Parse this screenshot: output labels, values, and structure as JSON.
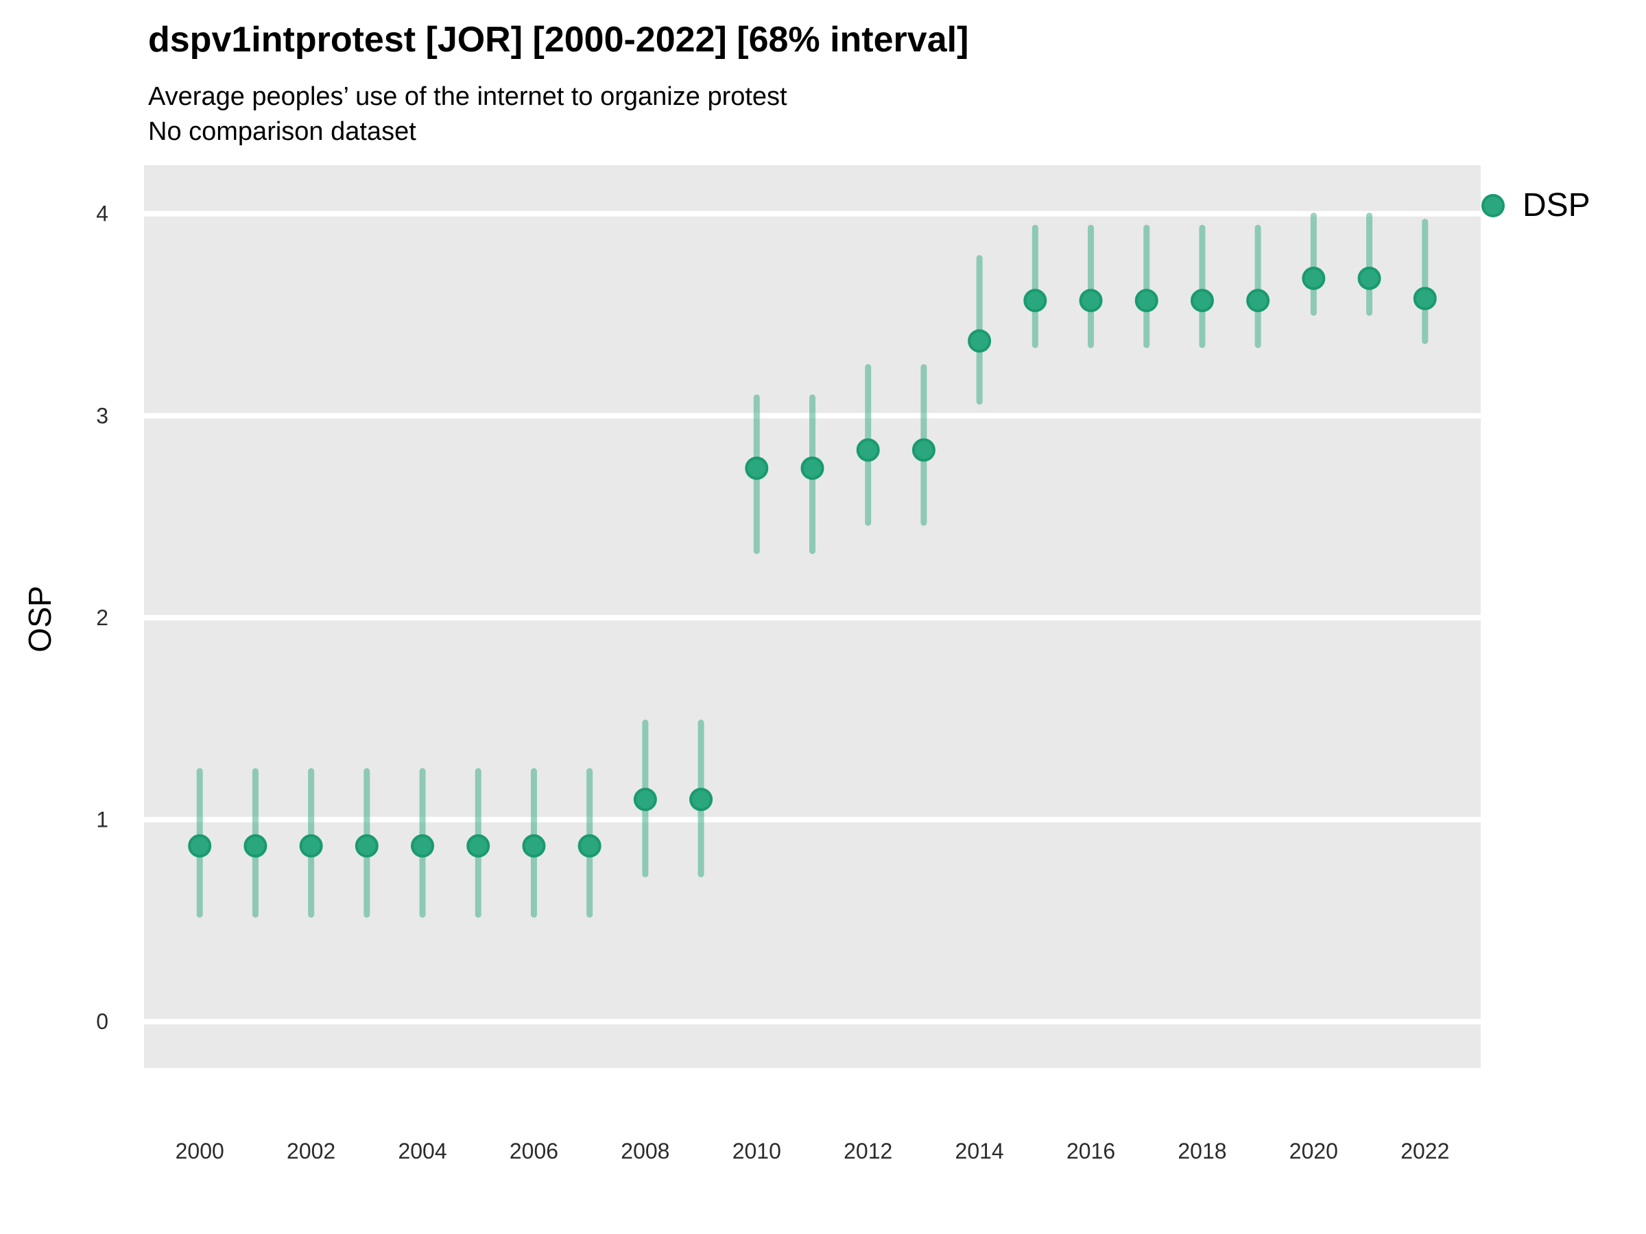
{
  "header": {
    "title": "dspv1intprotest [JOR] [2000-2022] [68% interval]",
    "subtitle": "Average peoples’ use of the internet to organize protest",
    "note": "No comparison dataset"
  },
  "legend": {
    "label": "DSP",
    "position": "top-right"
  },
  "colors": {
    "point_fill": "#2aa77f",
    "point_stroke": "#1a9a6e",
    "interval_bar": "#2aa77f",
    "panel_background": "#e9e9e9",
    "gridline": "#ffffff",
    "text": "#000000"
  },
  "chart_data": {
    "type": "pointrange",
    "title": "dspv1intprotest [JOR] [2000-2022] [68% interval]",
    "subtitle": "Average peoples’ use of the internet to organize protest",
    "note": "No comparison dataset",
    "xlabel": "",
    "ylabel": "OSP",
    "interval": "68%",
    "grid": "major-horizontal-only",
    "legend_position": "right",
    "xlim": [
      1999,
      2023
    ],
    "ylim": [
      -0.23,
      4.24
    ],
    "xticks": [
      2000,
      2002,
      2004,
      2006,
      2008,
      2010,
      2012,
      2014,
      2016,
      2018,
      2020,
      2022
    ],
    "yticks": [
      0,
      1,
      2,
      3,
      4
    ],
    "series": [
      {
        "name": "DSP",
        "points": [
          {
            "year": 2000,
            "value": 0.87,
            "lo": 0.53,
            "hi": 1.24
          },
          {
            "year": 2001,
            "value": 0.87,
            "lo": 0.53,
            "hi": 1.24
          },
          {
            "year": 2002,
            "value": 0.87,
            "lo": 0.53,
            "hi": 1.24
          },
          {
            "year": 2003,
            "value": 0.87,
            "lo": 0.53,
            "hi": 1.24
          },
          {
            "year": 2004,
            "value": 0.87,
            "lo": 0.53,
            "hi": 1.24
          },
          {
            "year": 2005,
            "value": 0.87,
            "lo": 0.53,
            "hi": 1.24
          },
          {
            "year": 2006,
            "value": 0.87,
            "lo": 0.53,
            "hi": 1.24
          },
          {
            "year": 2007,
            "value": 0.87,
            "lo": 0.53,
            "hi": 1.24
          },
          {
            "year": 2008,
            "value": 1.1,
            "lo": 0.73,
            "hi": 1.48
          },
          {
            "year": 2009,
            "value": 1.1,
            "lo": 0.73,
            "hi": 1.48
          },
          {
            "year": 2010,
            "value": 2.74,
            "lo": 2.33,
            "hi": 3.09
          },
          {
            "year": 2011,
            "value": 2.74,
            "lo": 2.33,
            "hi": 3.09
          },
          {
            "year": 2012,
            "value": 2.83,
            "lo": 2.47,
            "hi": 3.24
          },
          {
            "year": 2013,
            "value": 2.83,
            "lo": 2.47,
            "hi": 3.24
          },
          {
            "year": 2014,
            "value": 3.37,
            "lo": 3.07,
            "hi": 3.78
          },
          {
            "year": 2015,
            "value": 3.57,
            "lo": 3.35,
            "hi": 3.93
          },
          {
            "year": 2016,
            "value": 3.57,
            "lo": 3.35,
            "hi": 3.93
          },
          {
            "year": 2017,
            "value": 3.57,
            "lo": 3.35,
            "hi": 3.93
          },
          {
            "year": 2018,
            "value": 3.57,
            "lo": 3.35,
            "hi": 3.93
          },
          {
            "year": 2019,
            "value": 3.57,
            "lo": 3.35,
            "hi": 3.93
          },
          {
            "year": 2020,
            "value": 3.68,
            "lo": 3.51,
            "hi": 3.99
          },
          {
            "year": 2021,
            "value": 3.68,
            "lo": 3.51,
            "hi": 3.99
          },
          {
            "year": 2022,
            "value": 3.58,
            "lo": 3.37,
            "hi": 3.96
          }
        ]
      }
    ]
  }
}
